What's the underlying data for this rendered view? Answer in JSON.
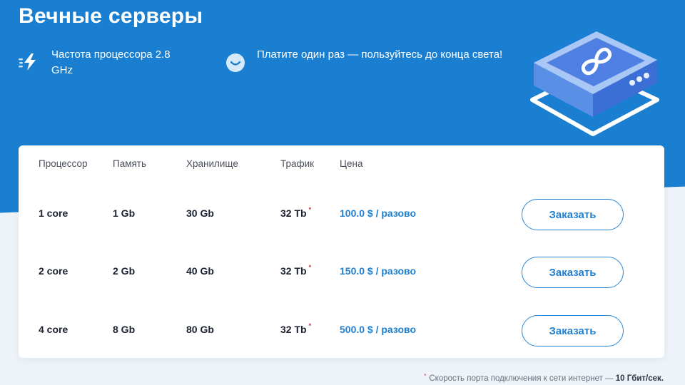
{
  "page": {
    "title": "Вечные серверы"
  },
  "features": [
    {
      "icon": "lightning-icon",
      "text": "Частота процессора 2.8 GHz"
    },
    {
      "icon": "smile-icon",
      "text": "Платите один раз — пользуйтесь до конца света!"
    }
  ],
  "table": {
    "headers": {
      "cpu": "Процессор",
      "memory": "Память",
      "storage": "Хранилище",
      "traffic": "Трафик",
      "price": "Цена"
    },
    "rows": [
      {
        "cpu": "1 core",
        "memory": "1 Gb",
        "storage": "30 Gb",
        "traffic": "32 Tb",
        "price": "100.0 $ / разово",
        "button": "Заказать"
      },
      {
        "cpu": "2 core",
        "memory": "2 Gb",
        "storage": "40 Gb",
        "traffic": "32 Tb",
        "price": "150.0 $ / разово",
        "button": "Заказать"
      },
      {
        "cpu": "4 core",
        "memory": "8 Gb",
        "storage": "80 Gb",
        "traffic": "32 Tb",
        "price": "500.0 $ / разово",
        "button": "Заказать"
      }
    ],
    "asterisk": "*"
  },
  "footnote": {
    "asterisk": "*",
    "text": "Скорость порта подключения к сети интернет —",
    "value": "10 Гбит/сек."
  },
  "colors": {
    "hero": "#1a7fd0",
    "accent": "#1f7fd0",
    "asterisk": "#e0243a"
  }
}
